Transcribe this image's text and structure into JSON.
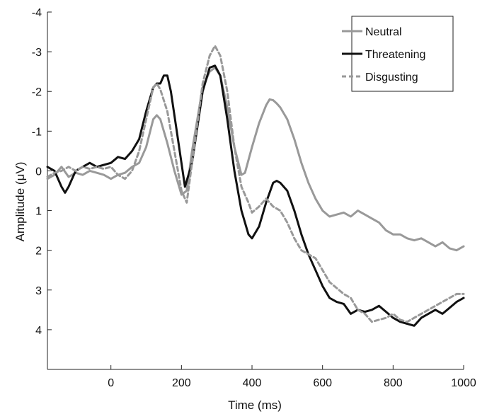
{
  "chart_data": {
    "type": "line",
    "title": "",
    "xlabel": "Time (ms)",
    "ylabel": "Amplitude (μV)",
    "xlim": [
      -180,
      1000
    ],
    "ylim": [
      -4,
      5
    ],
    "y_inverted": true,
    "xticks": [
      0,
      200,
      400,
      600,
      800,
      1000
    ],
    "xtick_labels": [
      "0",
      "200",
      "400",
      "600",
      "800",
      "1000"
    ],
    "yticks": [
      -4,
      -3,
      -2,
      -1,
      0,
      1,
      2,
      3,
      4
    ],
    "ytick_labels": [
      "-4",
      "-3",
      "-2",
      "-1",
      "0",
      "1",
      "2",
      "3",
      "4"
    ],
    "grid": false,
    "legend_position": "top-right",
    "series": [
      {
        "name": "Neutral",
        "color": "#999999",
        "style": "solid",
        "x": [
          -180,
          -160,
          -140,
          -120,
          -100,
          -80,
          -60,
          -40,
          -20,
          0,
          20,
          40,
          60,
          80,
          100,
          120,
          130,
          140,
          160,
          180,
          200,
          215,
          230,
          260,
          280,
          295,
          310,
          330,
          350,
          370,
          380,
          400,
          420,
          440,
          450,
          460,
          470,
          480,
          500,
          520,
          540,
          560,
          580,
          600,
          620,
          640,
          660,
          680,
          700,
          720,
          740,
          760,
          780,
          800,
          820,
          840,
          860,
          880,
          900,
          920,
          940,
          960,
          980,
          1000
        ],
        "y": [
          0.2,
          0.1,
          -0.1,
          0.15,
          0.05,
          0.1,
          0.0,
          0.05,
          0.1,
          0.2,
          0.1,
          0.05,
          -0.1,
          -0.2,
          -0.6,
          -1.3,
          -1.4,
          -1.3,
          -0.7,
          0.0,
          0.6,
          0.5,
          -0.5,
          -2.1,
          -2.5,
          -2.6,
          -2.4,
          -1.6,
          -0.6,
          0.1,
          0.05,
          -0.6,
          -1.2,
          -1.65,
          -1.8,
          -1.78,
          -1.7,
          -1.6,
          -1.3,
          -0.8,
          -0.2,
          0.3,
          0.7,
          1.0,
          1.15,
          1.1,
          1.05,
          1.15,
          1.0,
          1.1,
          1.2,
          1.3,
          1.5,
          1.6,
          1.6,
          1.7,
          1.75,
          1.7,
          1.8,
          1.9,
          1.8,
          1.95,
          2.0,
          1.9
        ]
      },
      {
        "name": "Threatening",
        "color": "#111111",
        "style": "solid",
        "x": [
          -180,
          -160,
          -140,
          -130,
          -120,
          -100,
          -80,
          -60,
          -40,
          -20,
          0,
          20,
          40,
          60,
          80,
          100,
          120,
          130,
          140,
          150,
          160,
          170,
          190,
          210,
          230,
          260,
          280,
          295,
          310,
          330,
          350,
          370,
          390,
          400,
          420,
          440,
          460,
          470,
          480,
          500,
          520,
          540,
          560,
          580,
          600,
          620,
          640,
          660,
          680,
          700,
          720,
          740,
          760,
          780,
          800,
          820,
          840,
          860,
          880,
          900,
          920,
          940,
          960,
          980,
          1000
        ],
        "y": [
          -0.1,
          0.0,
          0.4,
          0.55,
          0.4,
          0.0,
          -0.1,
          -0.2,
          -0.1,
          -0.15,
          -0.2,
          -0.35,
          -0.3,
          -0.5,
          -0.8,
          -1.5,
          -2.1,
          -2.2,
          -2.2,
          -2.4,
          -2.4,
          -2.0,
          -0.8,
          0.4,
          -0.2,
          -2.0,
          -2.6,
          -2.65,
          -2.4,
          -1.3,
          0.0,
          1.0,
          1.6,
          1.7,
          1.4,
          0.8,
          0.3,
          0.25,
          0.3,
          0.5,
          1.0,
          1.6,
          2.1,
          2.5,
          2.9,
          3.2,
          3.3,
          3.35,
          3.6,
          3.5,
          3.55,
          3.5,
          3.4,
          3.55,
          3.7,
          3.8,
          3.85,
          3.9,
          3.7,
          3.6,
          3.5,
          3.6,
          3.45,
          3.3,
          3.2
        ]
      },
      {
        "name": "Disgusting",
        "color": "#999999",
        "style": "dashed",
        "x": [
          -180,
          -160,
          -140,
          -120,
          -100,
          -80,
          -60,
          -40,
          -20,
          0,
          20,
          40,
          60,
          80,
          100,
          120,
          130,
          140,
          160,
          180,
          200,
          215,
          230,
          260,
          280,
          295,
          310,
          330,
          350,
          370,
          390,
          400,
          420,
          440,
          460,
          480,
          500,
          520,
          540,
          560,
          580,
          600,
          620,
          640,
          660,
          680,
          700,
          720,
          740,
          760,
          780,
          800,
          820,
          840,
          860,
          880,
          900,
          920,
          940,
          960,
          980,
          1000
        ],
        "y": [
          0.15,
          0.05,
          0.0,
          -0.1,
          0.0,
          -0.1,
          -0.05,
          -0.1,
          -0.05,
          -0.1,
          0.1,
          0.2,
          0.0,
          -0.5,
          -1.3,
          -2.1,
          -2.2,
          -2.05,
          -1.5,
          -0.5,
          0.5,
          0.8,
          -0.2,
          -2.2,
          -2.9,
          -3.15,
          -2.9,
          -2.0,
          -0.6,
          0.4,
          0.8,
          1.05,
          0.9,
          0.7,
          0.9,
          1.0,
          1.3,
          1.7,
          2.0,
          2.1,
          2.2,
          2.5,
          2.8,
          2.95,
          3.1,
          3.2,
          3.5,
          3.6,
          3.8,
          3.75,
          3.7,
          3.6,
          3.75,
          3.8,
          3.7,
          3.6,
          3.5,
          3.4,
          3.3,
          3.2,
          3.1,
          3.1
        ]
      }
    ]
  }
}
